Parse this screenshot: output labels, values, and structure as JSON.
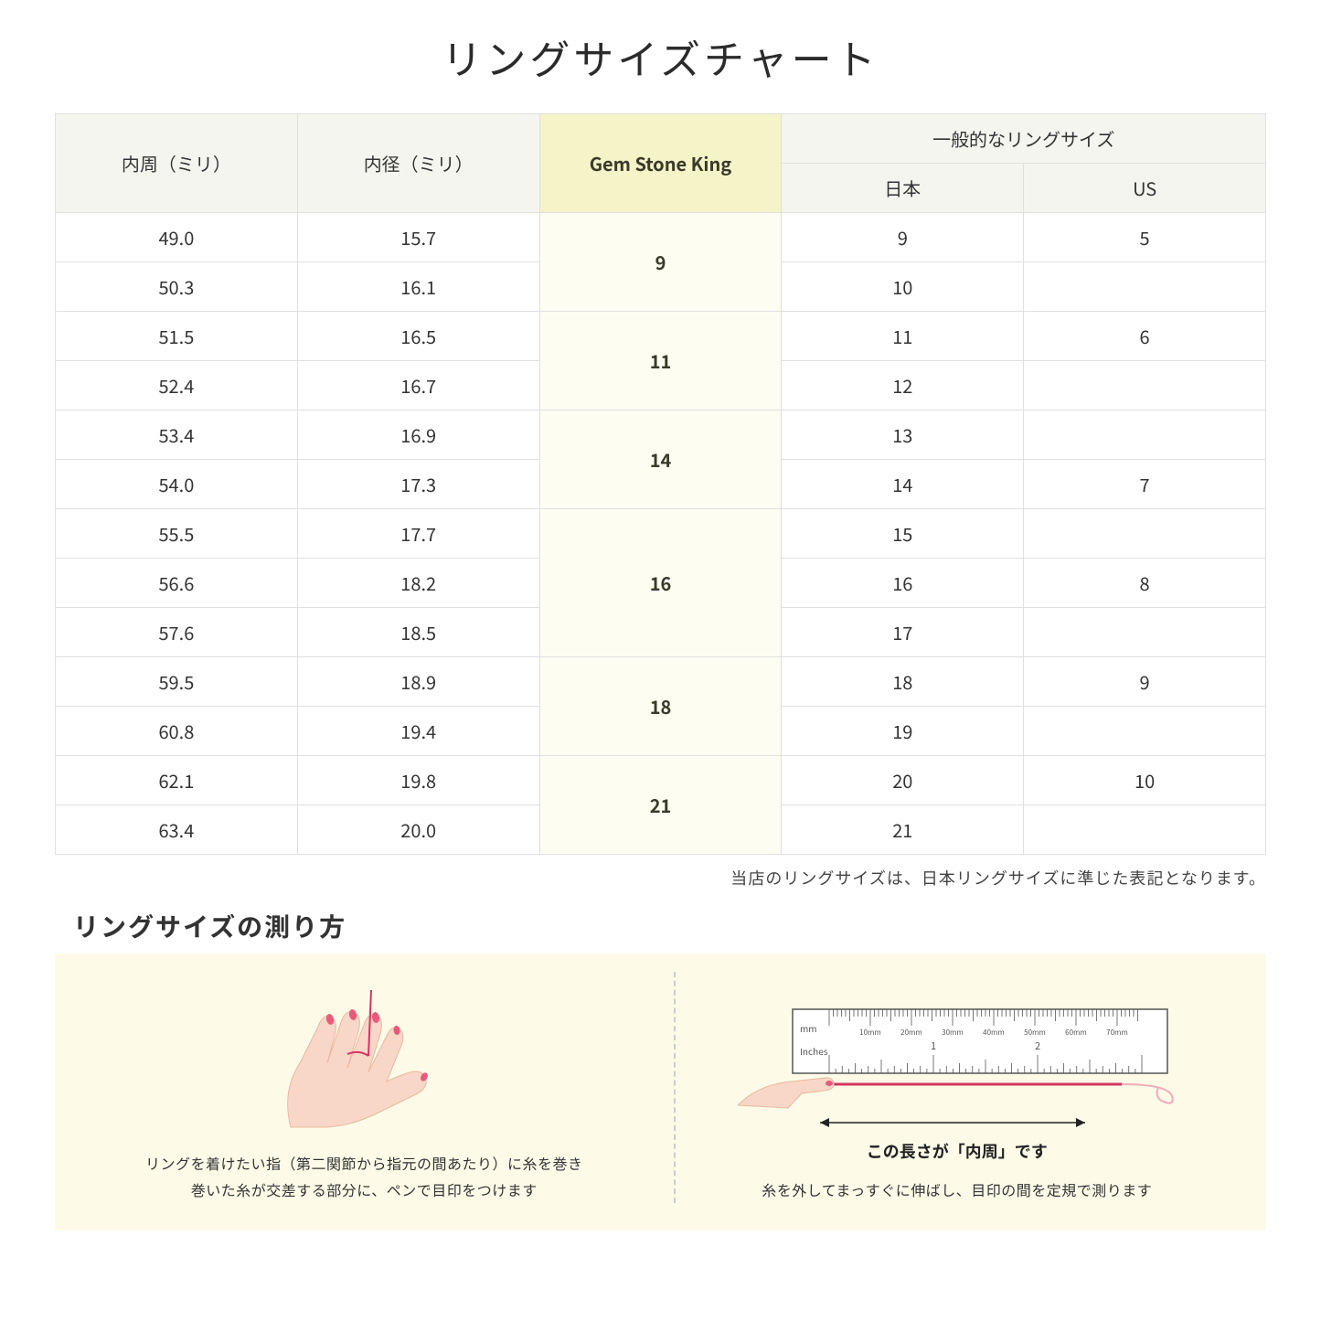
{
  "title": "リングサイズチャート",
  "headers": {
    "circumference": "内周（ミリ）",
    "diameter": "内径（ミリ）",
    "gsk": "Gem Stone King",
    "general": "一般的なリングサイズ",
    "japan": "日本",
    "us": "US"
  },
  "groups": [
    {
      "gsk": "9",
      "rows": [
        {
          "c": "49.0",
          "d": "15.7",
          "jp": "9",
          "us": "5"
        },
        {
          "c": "50.3",
          "d": "16.1",
          "jp": "10",
          "us": ""
        }
      ]
    },
    {
      "gsk": "11",
      "rows": [
        {
          "c": "51.5",
          "d": "16.5",
          "jp": "11",
          "us": "6"
        },
        {
          "c": "52.4",
          "d": "16.7",
          "jp": "12",
          "us": ""
        }
      ]
    },
    {
      "gsk": "14",
      "rows": [
        {
          "c": "53.4",
          "d": "16.9",
          "jp": "13",
          "us": ""
        },
        {
          "c": "54.0",
          "d": "17.3",
          "jp": "14",
          "us": "7"
        }
      ]
    },
    {
      "gsk": "16",
      "rows": [
        {
          "c": "55.5",
          "d": "17.7",
          "jp": "15",
          "us": ""
        },
        {
          "c": "56.6",
          "d": "18.2",
          "jp": "16",
          "us": "8"
        },
        {
          "c": "57.6",
          "d": "18.5",
          "jp": "17",
          "us": ""
        }
      ]
    },
    {
      "gsk": "18",
      "rows": [
        {
          "c": "59.5",
          "d": "18.9",
          "jp": "18",
          "us": "9"
        },
        {
          "c": "60.8",
          "d": "19.4",
          "jp": "19",
          "us": ""
        }
      ]
    },
    {
      "gsk": "21",
      "rows": [
        {
          "c": "62.1",
          "d": "19.8",
          "jp": "20",
          "us": "10"
        },
        {
          "c": "63.4",
          "d": "20.0",
          "jp": "21",
          "us": ""
        }
      ]
    }
  ],
  "note": "当店のリングサイズは、日本リングサイズに準じた表記となります。",
  "subtitle": "リングサイズの測り方",
  "step1": "リングを着けたい指（第二関節から指元の間あたり）に糸を巻き\n巻いた糸が交差する部分に、ペンで目印をつけます",
  "step2_caption": "この長さが「内周」です",
  "step2": "糸を外してまっすぐに伸ばし、目印の間を定規で測ります",
  "ruler": {
    "mm_label": "mm",
    "inches_label": "Inches",
    "mm_marks": [
      "10mm",
      "20mm",
      "30mm",
      "40mm",
      "50mm",
      "60mm",
      "70mm"
    ],
    "inch_marks": [
      "1",
      "2"
    ]
  },
  "colors": {
    "header_bg": "#f5f5f0",
    "highlight_header_bg": "#f5f3c8",
    "highlight_cell_bg": "#fdfdf2",
    "border": "#e0e0e0",
    "panel_bg": "#fdfbe8",
    "skin": "#f8d7c8",
    "skin_shadow": "#e8b8a0",
    "nail": "#e85a7a",
    "thread": "#d63560"
  }
}
